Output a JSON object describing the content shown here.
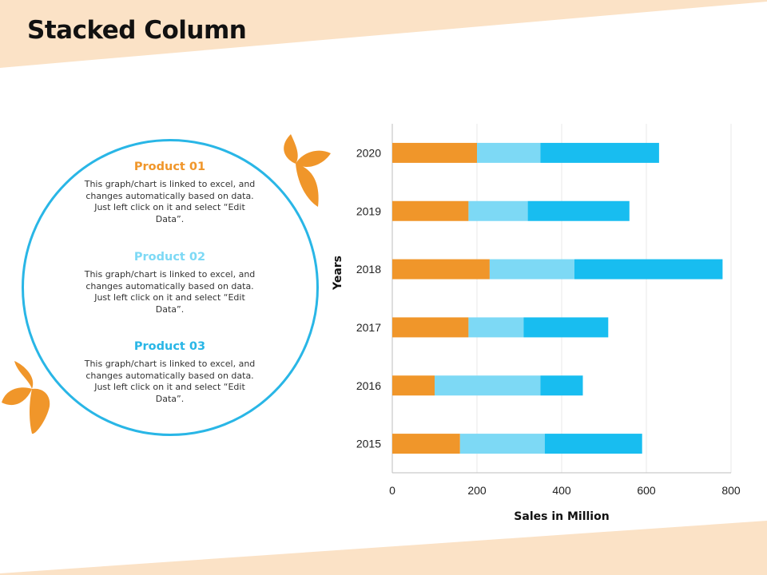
{
  "slide": {
    "title": "Stacked Column"
  },
  "colors": {
    "band": "#fbe2c6",
    "accent_orange": "#f0962a",
    "circle_border": "#29b6e6",
    "product1": "#f0962a",
    "product2": "#7dd9f5",
    "product3": "#18bdf0"
  },
  "products": [
    {
      "title": "Product 01",
      "description": "This graph/chart is linked to excel, and changes automatically based on data. Just left click on it and select “Edit Data”."
    },
    {
      "title": "Product 02",
      "description": "This graph/chart is linked to excel, and changes automatically based on data. Just left click on it and select “Edit Data”."
    },
    {
      "title": "Product 03",
      "description": "This graph/chart is linked to excel, and changes automatically based on data. Just left click on it and select “Edit Data”."
    }
  ],
  "chart_data": {
    "type": "bar",
    "orientation": "horizontal",
    "stacked": true,
    "title": "",
    "xlabel": "Sales in Million",
    "ylabel": "Years",
    "categories": [
      "2015",
      "2016",
      "2017",
      "2018",
      "2019",
      "2020"
    ],
    "series": [
      {
        "name": "Product 01",
        "values": [
          160,
          100,
          180,
          230,
          180,
          200
        ]
      },
      {
        "name": "Product 02",
        "values": [
          200,
          250,
          130,
          200,
          140,
          150
        ]
      },
      {
        "name": "Product 03",
        "values": [
          230,
          100,
          200,
          350,
          240,
          280
        ]
      }
    ],
    "xlim": [
      0,
      800
    ],
    "xticks": [
      "0",
      "200",
      "400",
      "600",
      "800"
    ],
    "grid": true,
    "legend": "none"
  }
}
